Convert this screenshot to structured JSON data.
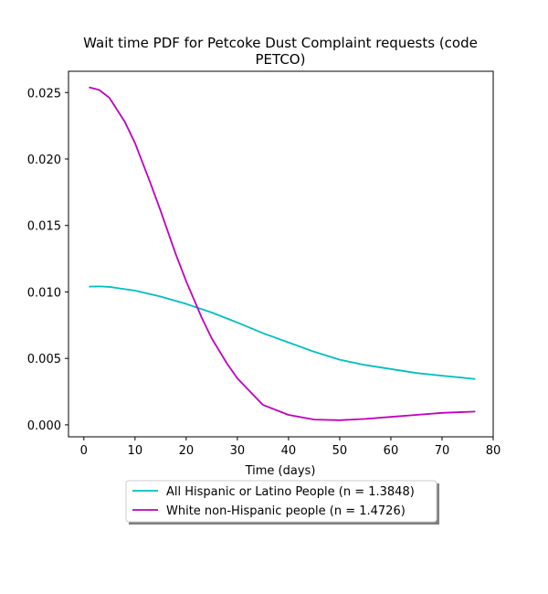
{
  "chart_data": {
    "type": "line",
    "title_line1": "Wait time PDF for Petcoke Dust Complaint  requests (code",
    "title_line2": "PETCO)",
    "xlabel": "Time (days)",
    "ylabel": "",
    "xlim": [
      -3,
      80
    ],
    "ylim": [
      -0.0009,
      0.0266
    ],
    "xticks": [
      0,
      10,
      20,
      30,
      40,
      50,
      60,
      70,
      80
    ],
    "xtick_labels": [
      "0",
      "10",
      "20",
      "30",
      "40",
      "50",
      "60",
      "70",
      "80"
    ],
    "yticks": [
      0.0,
      0.005,
      0.01,
      0.015,
      0.02,
      0.025
    ],
    "ytick_labels": [
      "0.000",
      "0.005",
      "0.010",
      "0.015",
      "0.020",
      "0.025"
    ],
    "grid": false,
    "legend_position": "below",
    "series": [
      {
        "name": "All Hispanic or Latino People (n = 1.3848)",
        "color": "#00bfbf",
        "x": [
          1,
          3,
          5,
          10,
          15,
          20,
          25,
          30,
          35,
          40,
          45,
          50,
          55,
          60,
          65,
          70,
          76.5
        ],
        "y": [
          0.0104,
          0.01042,
          0.01038,
          0.0101,
          0.00965,
          0.0091,
          0.00845,
          0.0077,
          0.0069,
          0.0062,
          0.0055,
          0.0049,
          0.0045,
          0.0042,
          0.0039,
          0.0037,
          0.00345
        ]
      },
      {
        "name": "White non-Hispanic people (n = 1.4726)",
        "color": "#bf00bf",
        "x": [
          1,
          3,
          5,
          8,
          10,
          13,
          15,
          18,
          20,
          23,
          25,
          28,
          30,
          35,
          40,
          45,
          50,
          55,
          60,
          65,
          70,
          76.5
        ],
        "y": [
          0.0254,
          0.0252,
          0.0246,
          0.0228,
          0.0212,
          0.0182,
          0.0161,
          0.0128,
          0.0108,
          0.0081,
          0.0065,
          0.0046,
          0.0035,
          0.0015,
          0.00075,
          0.0004,
          0.00035,
          0.00045,
          0.0006,
          0.00075,
          0.0009,
          0.001
        ]
      }
    ]
  }
}
